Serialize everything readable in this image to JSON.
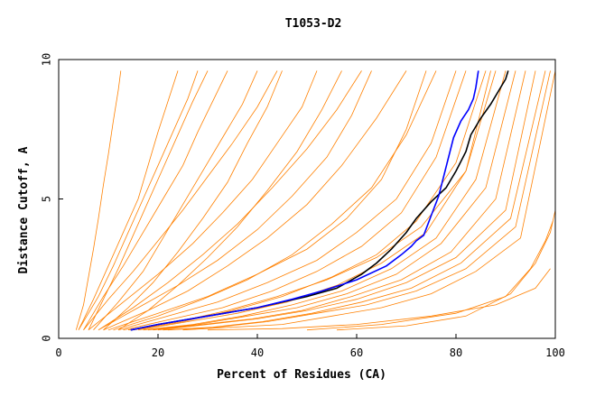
{
  "chart_data": {
    "type": "line",
    "title": "T1053-D2",
    "xlabel": "Percent of Residues (CA)",
    "ylabel": "Distance Cutoff, A",
    "xlim": [
      0,
      100
    ],
    "ylim": [
      0,
      10
    ],
    "x_ticks": [
      "0",
      "20",
      "40",
      "60",
      "80",
      "100"
    ],
    "y_ticks": [
      "0",
      "5",
      "10"
    ],
    "grid": false,
    "colors": {
      "models": "#ff8000",
      "black_model": "#000000",
      "blue_model": "#0000ff",
      "axes": "#000000"
    },
    "series": [
      {
        "color": "#000000",
        "x": [
          14.5,
          20,
          30,
          40,
          50,
          56,
          61,
          64,
          67,
          70,
          72,
          75,
          78,
          80,
          82,
          83,
          85,
          87,
          89,
          90,
          90.5
        ],
        "y": [
          0.3,
          0.5,
          0.8,
          1.1,
          1.5,
          1.8,
          2.3,
          2.7,
          3.2,
          3.8,
          4.3,
          4.9,
          5.4,
          6.0,
          6.7,
          7.3,
          7.9,
          8.4,
          9.0,
          9.3,
          9.6
        ]
      },
      {
        "color": "#0000ff",
        "x": [
          14.5,
          20,
          30,
          40,
          47,
          53,
          60,
          66,
          69,
          71,
          72,
          73.5,
          75,
          76.5,
          77.5,
          78.5,
          79.5,
          81,
          82.5,
          83.5,
          84,
          84.5
        ],
        "y": [
          0.3,
          0.5,
          0.8,
          1.1,
          1.4,
          1.7,
          2.1,
          2.6,
          3.0,
          3.3,
          3.5,
          3.7,
          4.4,
          5.1,
          5.8,
          6.5,
          7.2,
          7.8,
          8.2,
          8.6,
          9.0,
          9.6
        ]
      },
      {
        "color": "#ff8000",
        "x": [
          3.5,
          5,
          6,
          7,
          8,
          9,
          10,
          11,
          12,
          12.5
        ],
        "y": [
          0.3,
          1.2,
          2.2,
          3.2,
          4.3,
          5.5,
          6.6,
          7.8,
          8.9,
          9.6
        ]
      },
      {
        "color": "#ff8000",
        "x": [
          4,
          8,
          11,
          14,
          17,
          20,
          23,
          26,
          28
        ],
        "y": [
          0.3,
          1.5,
          2.6,
          3.8,
          5.0,
          6.2,
          7.4,
          8.6,
          9.6
        ]
      },
      {
        "color": "#ff8000",
        "x": [
          5,
          10,
          15,
          20,
          25,
          30,
          35,
          40,
          44
        ],
        "y": [
          0.3,
          1.4,
          2.4,
          3.5,
          4.6,
          5.8,
          7.0,
          8.3,
          9.6
        ]
      },
      {
        "color": "#ff8000",
        "x": [
          6,
          13,
          20,
          27,
          33,
          39,
          44,
          49,
          52
        ],
        "y": [
          0.3,
          1.3,
          2.3,
          3.4,
          4.5,
          5.7,
          7.0,
          8.3,
          9.6
        ]
      },
      {
        "color": "#ff8000",
        "x": [
          8,
          16,
          24,
          32,
          40,
          47,
          54,
          59,
          63
        ],
        "y": [
          0.3,
          1.1,
          1.9,
          2.8,
          3.9,
          5.1,
          6.5,
          8.0,
          9.6
        ]
      },
      {
        "color": "#ff8000",
        "x": [
          10,
          20,
          30,
          40,
          50,
          58,
          65,
          70,
          74
        ],
        "y": [
          0.3,
          0.9,
          1.5,
          2.3,
          3.2,
          4.3,
          5.7,
          7.5,
          9.6
        ]
      },
      {
        "color": "#ff8000",
        "x": [
          12,
          22,
          32,
          42,
          52,
          60,
          68,
          75,
          80
        ],
        "y": [
          0.3,
          0.8,
          1.3,
          2.0,
          2.8,
          3.8,
          5.0,
          7.0,
          9.6
        ]
      },
      {
        "color": "#ff8000",
        "x": [
          15,
          25,
          35,
          45,
          55,
          64,
          72,
          80,
          86
        ],
        "y": [
          0.3,
          0.6,
          1.0,
          1.5,
          2.2,
          3.0,
          4.2,
          6.3,
          9.6
        ]
      },
      {
        "color": "#ff8000",
        "x": [
          16,
          26,
          36,
          46,
          56,
          65,
          74,
          82,
          88
        ],
        "y": [
          0.3,
          0.6,
          0.9,
          1.3,
          1.9,
          2.7,
          3.8,
          6.0,
          9.6
        ]
      },
      {
        "color": "#ff8000",
        "x": [
          17,
          27,
          37,
          47,
          57,
          67,
          76,
          84,
          90
        ],
        "y": [
          0.3,
          0.5,
          0.8,
          1.2,
          1.7,
          2.5,
          3.6,
          5.7,
          9.6
        ]
      },
      {
        "color": "#ff8000",
        "x": [
          18,
          28,
          38,
          48,
          58,
          68,
          77,
          86,
          92
        ],
        "y": [
          0.3,
          0.5,
          0.8,
          1.1,
          1.6,
          2.3,
          3.4,
          5.4,
          9.6
        ]
      },
      {
        "color": "#ff8000",
        "x": [
          19,
          29,
          39,
          49,
          59,
          69,
          79,
          88,
          94
        ],
        "y": [
          0.3,
          0.5,
          0.7,
          1.0,
          1.5,
          2.1,
          3.1,
          5.0,
          9.6
        ]
      },
      {
        "color": "#ff8000",
        "x": [
          20,
          30,
          40,
          50,
          60,
          70,
          80,
          90,
          96
        ],
        "y": [
          0.3,
          0.5,
          0.7,
          1.0,
          1.4,
          2.0,
          2.9,
          4.6,
          9.6
        ]
      },
      {
        "color": "#ff8000",
        "x": [
          21,
          31,
          41,
          51,
          61,
          71,
          81,
          91,
          98
        ],
        "y": [
          0.3,
          0.4,
          0.6,
          0.9,
          1.3,
          1.8,
          2.7,
          4.3,
          9.6
        ]
      },
      {
        "color": "#ff8000",
        "x": [
          22,
          32,
          42,
          52,
          62,
          72,
          82,
          92,
          99
        ],
        "y": [
          0.3,
          0.4,
          0.6,
          0.9,
          1.2,
          1.7,
          2.5,
          4.0,
          9.6
        ]
      },
      {
        "color": "#ff8000",
        "x": [
          12,
          18,
          24,
          30,
          36,
          42,
          48,
          53,
          57
        ],
        "y": [
          0.3,
          1.0,
          1.9,
          2.9,
          4.0,
          5.3,
          6.7,
          8.2,
          9.6
        ]
      },
      {
        "color": "#ff8000",
        "x": [
          9,
          14,
          19,
          24,
          29,
          34,
          38,
          42,
          45
        ],
        "y": [
          0.3,
          1.1,
          2.0,
          3.1,
          4.3,
          5.6,
          7.0,
          8.3,
          9.6
        ]
      },
      {
        "color": "#ff8000",
        "x": [
          7,
          12,
          17,
          21,
          25,
          29,
          33,
          37,
          40
        ],
        "y": [
          0.3,
          1.3,
          2.4,
          3.6,
          4.8,
          6.0,
          7.2,
          8.4,
          9.6
        ]
      },
      {
        "color": "#ff8000",
        "x": [
          6,
          9,
          12,
          15,
          18,
          21,
          24,
          27,
          30
        ],
        "y": [
          0.3,
          1.4,
          2.5,
          3.7,
          4.9,
          6.1,
          7.3,
          8.5,
          9.6
        ]
      },
      {
        "color": "#ff8000",
        "x": [
          25,
          35,
          45,
          55,
          65,
          75,
          84,
          93,
          100
        ],
        "y": [
          0.3,
          0.4,
          0.5,
          0.8,
          1.1,
          1.6,
          2.4,
          3.6,
          9.6
        ]
      },
      {
        "color": "#ff8000",
        "x": [
          14,
          24,
          34,
          44,
          54,
          64,
          73,
          82,
          87
        ],
        "y": [
          0.3,
          0.6,
          1.0,
          1.5,
          2.1,
          2.9,
          4.0,
          6.0,
          9.6
        ]
      },
      {
        "color": "#ff8000",
        "x": [
          13,
          23,
          33,
          43,
          52,
          61,
          69,
          76,
          82
        ],
        "y": [
          0.3,
          0.7,
          1.1,
          1.7,
          2.4,
          3.3,
          4.5,
          6.5,
          9.6
        ]
      },
      {
        "color": "#ff8000",
        "x": [
          11,
          20,
          29,
          38,
          47,
          55,
          63,
          70,
          76
        ],
        "y": [
          0.3,
          0.8,
          1.4,
          2.1,
          3.0,
          4.1,
          5.4,
          7.3,
          9.6
        ]
      },
      {
        "color": "#ff8000",
        "x": [
          9,
          18,
          26,
          34,
          42,
          50,
          57,
          64,
          70
        ],
        "y": [
          0.3,
          1.0,
          1.7,
          2.6,
          3.6,
          4.8,
          6.2,
          7.9,
          9.6
        ]
      },
      {
        "color": "#ff8000",
        "x": [
          8,
          15,
          22,
          29,
          36,
          43,
          50,
          56,
          61
        ],
        "y": [
          0.3,
          1.1,
          2.0,
          3.0,
          4.1,
          5.4,
          6.8,
          8.2,
          9.6
        ]
      },
      {
        "color": "#ff8000",
        "x": [
          5,
          9,
          13,
          17,
          21,
          25,
          28,
          31,
          34
        ],
        "y": [
          0.3,
          1.5,
          2.6,
          3.8,
          5.0,
          6.2,
          7.4,
          8.5,
          9.6
        ]
      },
      {
        "color": "#ff8000",
        "x": [
          4,
          7,
          10,
          13,
          16,
          18,
          20,
          22,
          24
        ],
        "y": [
          0.3,
          1.4,
          2.6,
          3.8,
          5.0,
          6.2,
          7.4,
          8.5,
          9.6
        ]
      },
      {
        "color": "#ff8000",
        "x": [
          30,
          45,
          60,
          75,
          88,
          96,
          99
        ],
        "y": [
          0.3,
          0.35,
          0.5,
          0.8,
          1.2,
          1.8,
          2.5
        ]
      },
      {
        "color": "#ff8000",
        "x": [
          50,
          65,
          80,
          90,
          95,
          98,
          99.5
        ],
        "y": [
          0.3,
          0.5,
          0.9,
          1.5,
          2.5,
          3.5,
          4.2
        ]
      },
      {
        "color": "#ff8000",
        "x": [
          56,
          70,
          82,
          91,
          96,
          99,
          100
        ],
        "y": [
          0.3,
          0.45,
          0.8,
          1.6,
          2.7,
          3.8,
          4.6
        ]
      }
    ]
  }
}
